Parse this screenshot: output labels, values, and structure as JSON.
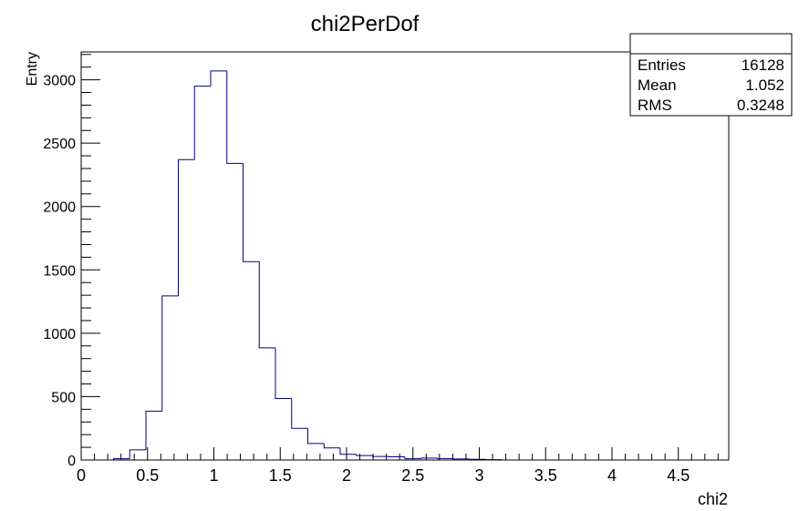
{
  "chart_data": {
    "type": "histogram",
    "title": "chi2PerDof",
    "xlabel": "chi2",
    "ylabel": "Entry",
    "xlim": [
      0,
      4.88
    ],
    "ylim": [
      0,
      3220
    ],
    "bin_width": 0.1222,
    "x_ticks": [
      0,
      0.5,
      1,
      1.5,
      2,
      2.5,
      3,
      3.5,
      4,
      4.5
    ],
    "x_tick_labels": [
      "0",
      "0.5",
      "1",
      "1.5",
      "2",
      "2.5",
      "3",
      "3.5",
      "4",
      "4.5"
    ],
    "y_ticks": [
      0,
      500,
      1000,
      1500,
      2000,
      2500,
      3000
    ],
    "y_tick_labels": [
      "0",
      "500",
      "1000",
      "1500",
      "2000",
      "2500",
      "3000"
    ],
    "bins": [
      {
        "x0": 0.244,
        "x1": 0.366,
        "value": 10
      },
      {
        "x0": 0.366,
        "x1": 0.488,
        "value": 80
      },
      {
        "x0": 0.488,
        "x1": 0.61,
        "value": 385
      },
      {
        "x0": 0.61,
        "x1": 0.732,
        "value": 1295
      },
      {
        "x0": 0.732,
        "x1": 0.854,
        "value": 2370
      },
      {
        "x0": 0.854,
        "x1": 0.976,
        "value": 2950
      },
      {
        "x0": 0.976,
        "x1": 1.098,
        "value": 3070
      },
      {
        "x0": 1.098,
        "x1": 1.22,
        "value": 2340
      },
      {
        "x0": 1.22,
        "x1": 1.342,
        "value": 1565
      },
      {
        "x0": 1.342,
        "x1": 1.464,
        "value": 885
      },
      {
        "x0": 1.464,
        "x1": 1.586,
        "value": 485
      },
      {
        "x0": 1.586,
        "x1": 1.708,
        "value": 250
      },
      {
        "x0": 1.708,
        "x1": 1.83,
        "value": 130
      },
      {
        "x0": 1.83,
        "x1": 1.952,
        "value": 95
      },
      {
        "x0": 1.952,
        "x1": 2.074,
        "value": 45
      },
      {
        "x0": 2.074,
        "x1": 2.196,
        "value": 35
      },
      {
        "x0": 2.196,
        "x1": 2.318,
        "value": 28
      },
      {
        "x0": 2.318,
        "x1": 2.44,
        "value": 25
      },
      {
        "x0": 2.44,
        "x1": 2.562,
        "value": 10
      },
      {
        "x0": 2.562,
        "x1": 2.684,
        "value": 15
      },
      {
        "x0": 2.684,
        "x1": 2.806,
        "value": 12
      },
      {
        "x0": 2.806,
        "x1": 2.928,
        "value": 8
      },
      {
        "x0": 2.928,
        "x1": 3.05,
        "value": 5
      },
      {
        "x0": 3.05,
        "x1": 3.172,
        "value": 3
      }
    ],
    "line_color": "#000080",
    "grid": false,
    "stats_box": {
      "position": "top-right",
      "rows": [
        {
          "label": "Entries",
          "value": "16128"
        },
        {
          "label": "Mean",
          "value": "1.052"
        },
        {
          "label": "RMS",
          "value": "0.3248"
        }
      ]
    }
  }
}
